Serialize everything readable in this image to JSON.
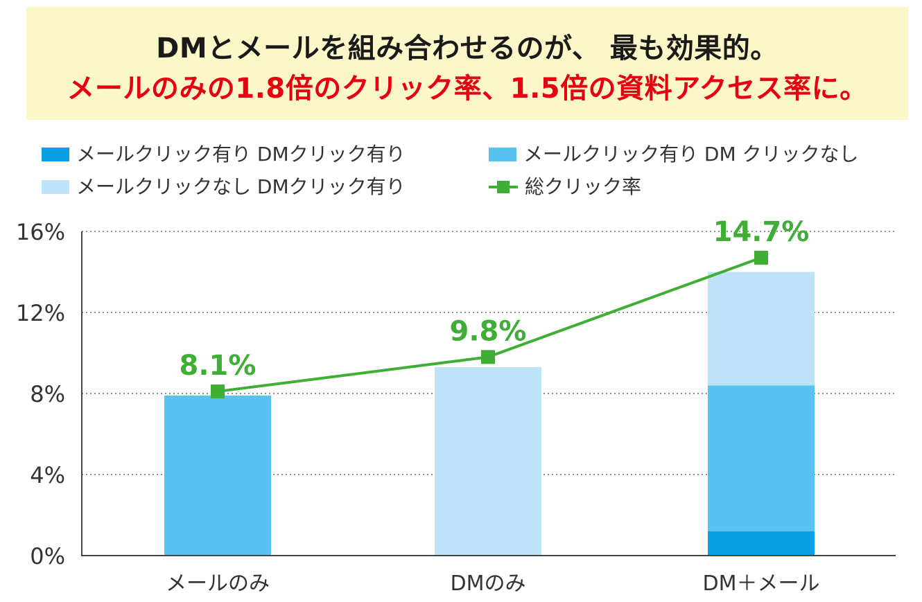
{
  "headline": {
    "line1": "DMとメールを組み合わせるのが、 最も効果的。",
    "line2": "メールのみの1.8倍のクリック率、1.5倍の資料アクセス率に。"
  },
  "colors": {
    "headline_background": "#fcf7c9",
    "headline_text": "#1a1a1a",
    "headline_highlight": "#e50012",
    "series_mail_and_dm": "#0a9ee3",
    "series_mail_only": "#59c2f1",
    "series_dm_only": "#bee3f8",
    "total_line": "#3fae34",
    "axis": "#444444",
    "grid": "#666666",
    "tick_text": "#333333"
  },
  "legend": [
    {
      "label": "メールクリック有り DMクリック有り",
      "kind": "swatch",
      "color": "#0a9ee3"
    },
    {
      "label": "メールクリック有り DM クリックなし",
      "kind": "swatch",
      "color": "#59c2f1"
    },
    {
      "label": "メールクリックなし DMクリック有り",
      "kind": "swatch",
      "color": "#bee3f8"
    },
    {
      "label": "総クリック率",
      "kind": "line",
      "color": "#3fae34"
    }
  ],
  "chart_data": {
    "type": "bar",
    "stacked": true,
    "categories": [
      "メールのみ",
      "DMのみ",
      "DM＋メール"
    ],
    "series": [
      {
        "name": "メールクリック有り DMクリック有り",
        "values": [
          0,
          0,
          1.2
        ]
      },
      {
        "name": "メールクリック有り DM クリックなし",
        "values": [
          7.9,
          0,
          7.2
        ]
      },
      {
        "name": "メールクリックなし DMクリック有り",
        "values": [
          0,
          9.3,
          5.6
        ]
      }
    ],
    "line_series": {
      "name": "総クリック率",
      "values": [
        8.1,
        9.8,
        14.7
      ],
      "labels": [
        "8.1%",
        "9.8%",
        "14.7%"
      ]
    },
    "y_ticks": [
      0,
      4,
      8,
      12,
      16
    ],
    "y_tick_labels": [
      "0%",
      "4%",
      "8%",
      "12%",
      "16%"
    ],
    "ylim": [
      0,
      16
    ],
    "grid": true,
    "grid_style": "dotted",
    "legend_position": "top"
  }
}
